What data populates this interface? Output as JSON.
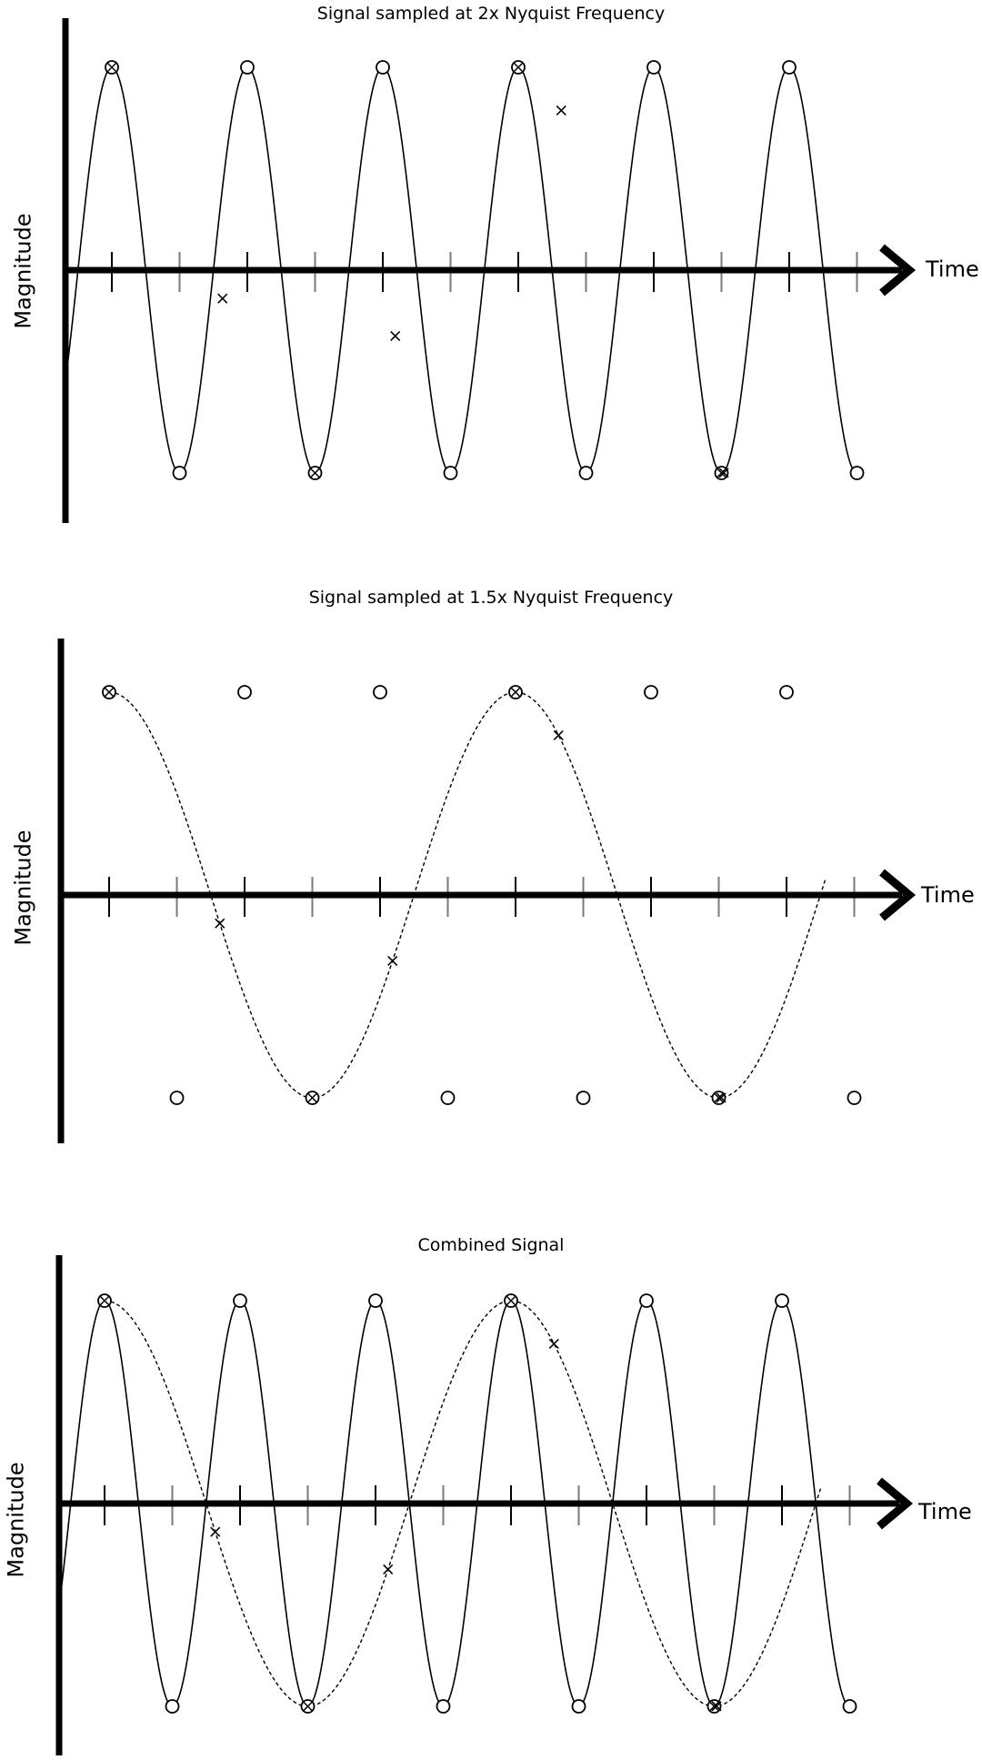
{
  "panels": [
    {
      "title": "Signal sampled at 2x Nyquist Frequency",
      "xlabel": "Time",
      "ylabel": "Magnitude",
      "signals": [
        "fast"
      ],
      "show_x_samples": true,
      "show_circle_samples": true
    },
    {
      "title": "Signal sampled at 1.5x Nyquist Frequency",
      "xlabel": "Time",
      "ylabel": "Magnitude",
      "signals": [
        "slow"
      ],
      "show_x_samples": true,
      "show_circle_samples": true
    },
    {
      "title": "Combined Signal",
      "xlabel": "Time",
      "ylabel": "Magnitude",
      "signals": [
        "fast",
        "slow"
      ],
      "show_x_samples": true,
      "show_circle_samples": true
    }
  ],
  "legend_styles": {
    "fast": "solid",
    "slow": "dashed"
  },
  "colors": {
    "axis": "#000000",
    "tick": "#7a7a7a",
    "signal": "#000000"
  }
}
